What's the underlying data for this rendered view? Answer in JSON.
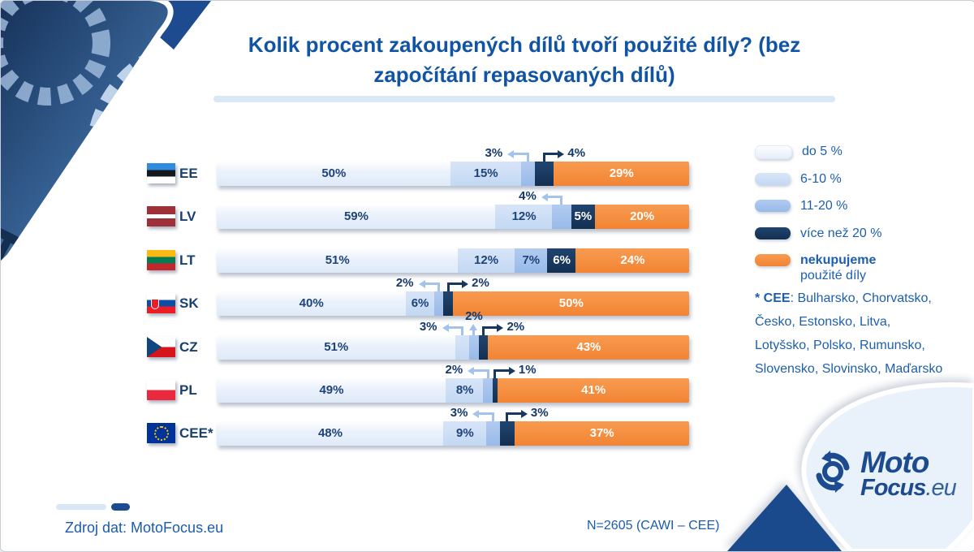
{
  "title": {
    "line1": "Kolik procent zakoupených dílů tvoří použité díly? (bez",
    "line2": "započítání repasovaných dílů)"
  },
  "chart_data": {
    "type": "bar",
    "stacked": true,
    "orientation": "horizontal",
    "unit": "%",
    "series_names": [
      "do 5 %",
      "6-10 %",
      "11-20 %",
      "více než 20 %",
      "nekupujeme použité díly"
    ],
    "categories": [
      "EE",
      "LV",
      "LT",
      "SK",
      "CZ",
      "PL",
      "CEE*"
    ],
    "rows": [
      {
        "country": "EE",
        "flag": "ee",
        "values": [
          50,
          15,
          3,
          4,
          29
        ],
        "placements": [
          "inside",
          "inside",
          "callout-left",
          "callout-right",
          "inside"
        ]
      },
      {
        "country": "LV",
        "flag": "lv",
        "values": [
          59,
          12,
          4,
          5,
          20
        ],
        "placements": [
          "inside",
          "inside",
          "callout-left",
          "inside",
          "inside"
        ]
      },
      {
        "country": "LT",
        "flag": "lt",
        "values": [
          51,
          12,
          7,
          6,
          24
        ],
        "placements": [
          "inside",
          "inside",
          "inside",
          "inside",
          "inside"
        ]
      },
      {
        "country": "SK",
        "flag": "sk",
        "values": [
          40,
          6,
          2,
          2,
          50
        ],
        "placements": [
          "inside",
          "inside",
          "callout-left",
          "callout-right",
          "inside"
        ]
      },
      {
        "country": "CZ",
        "flag": "cz",
        "values": [
          51,
          3,
          2,
          2,
          43
        ],
        "placements": [
          "inside",
          "callout-left",
          "callout-up",
          "callout-right",
          "inside"
        ]
      },
      {
        "country": "PL",
        "flag": "pl",
        "values": [
          49,
          8,
          2,
          1,
          41
        ],
        "placements": [
          "inside",
          "inside",
          "callout-left",
          "callout-right",
          "inside"
        ]
      },
      {
        "country": "CEE*",
        "flag": "eu",
        "values": [
          48,
          9,
          3,
          3,
          37
        ],
        "placements": [
          "inside",
          "inside",
          "callout-left",
          "callout-right",
          "inside"
        ]
      }
    ],
    "legend_position": "right",
    "grid": false
  },
  "legend": {
    "items": [
      {
        "label": "do 5 %",
        "band": 0
      },
      {
        "label": "6-10 %",
        "band": 1
      },
      {
        "label": "11-20 %",
        "band": 2
      },
      {
        "label": "více než 20 %",
        "band": 3
      },
      {
        "label": "nekupujeme",
        "sublabel": "použité díly",
        "band": 4,
        "bold": true
      }
    ]
  },
  "footnote": {
    "bold": "* CEE",
    "text": ": Bulharsko, Chorvatsko, Česko, Estonsko, Litva, Lotyšsko, Polsko, Rumunsko, Slovensko, Slovinsko, Maďarsko"
  },
  "footer": {
    "source": "Zdroj dat: MotoFocus.eu",
    "sample": "N=2605 (CAWI – CEE)"
  },
  "logo": {
    "word1": "Moto",
    "word2": "Focus",
    "suffix": ".eu"
  },
  "colors": {
    "band0": "#e7effb",
    "band1": "#c9dcf5",
    "band2": "#a4c3ec",
    "band3": "#17375e",
    "band4": "#f68e41",
    "navy": "#1c4b8f",
    "text_blue": "#1d5fae",
    "title_blue": "#1254a4",
    "label_dark": "#1d4378"
  }
}
